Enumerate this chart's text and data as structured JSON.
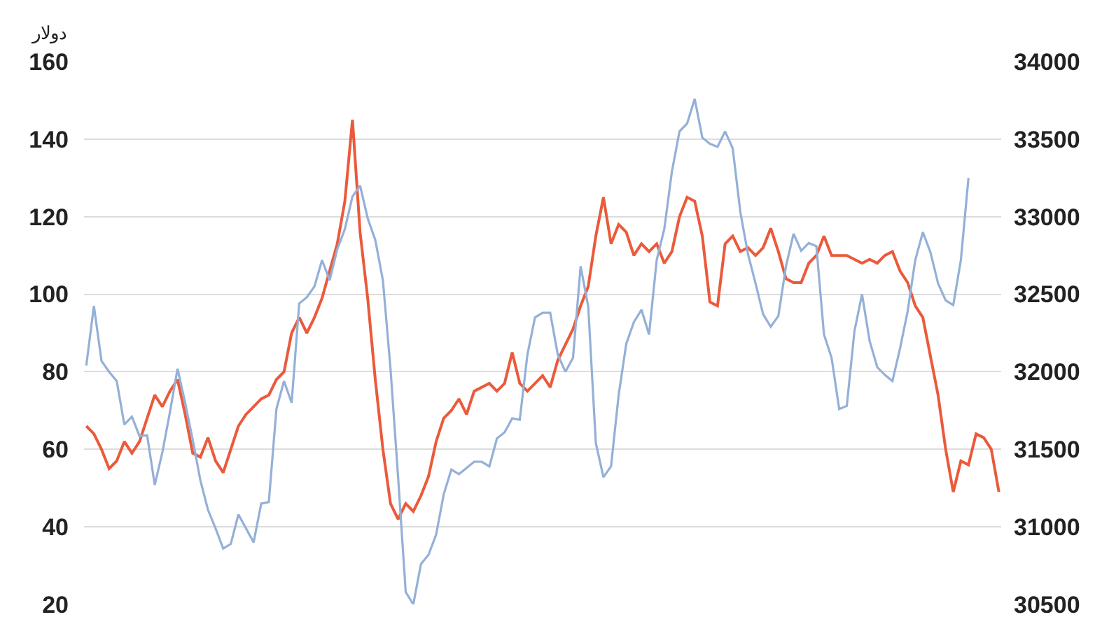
{
  "chart_data": {
    "type": "line",
    "ylabel": "دولار",
    "categories": [
      null,
      null,
      null,
      null,
      null,
      null,
      null,
      null,
      null,
      null,
      null,
      null,
      null,
      null,
      null,
      null,
      null,
      null,
      null,
      null,
      null,
      null,
      null,
      null,
      null,
      null,
      null,
      null,
      null,
      null,
      null,
      null,
      null,
      null,
      null,
      null,
      null,
      null,
      null,
      null,
      null,
      null,
      null,
      null,
      null,
      null,
      null,
      null,
      null,
      null,
      null,
      null,
      null,
      null,
      null,
      null,
      null,
      null,
      null,
      null,
      null,
      null,
      null,
      null,
      null,
      null,
      null,
      null,
      null,
      null,
      null,
      null,
      null,
      null,
      null,
      null,
      null,
      null,
      null,
      null,
      null,
      null,
      null,
      null,
      null,
      null,
      null,
      null,
      null,
      null,
      null,
      null,
      null,
      null,
      null,
      null,
      null,
      null,
      null,
      null,
      null,
      null,
      null,
      null,
      null,
      null,
      null,
      null,
      null,
      null,
      null,
      null,
      null,
      null,
      null,
      null,
      null,
      null,
      null,
      null,
      null
    ],
    "series": [
      {
        "color": "#ea5a3b",
        "values": [
          66,
          64,
          60,
          55,
          57,
          62,
          59,
          62,
          68,
          74,
          71,
          75,
          78,
          69,
          59,
          58,
          63,
          57,
          54,
          60,
          66,
          69,
          71,
          73,
          74,
          78,
          80,
          90,
          94,
          90,
          94,
          99,
          106,
          113,
          124,
          145,
          116,
          99,
          78,
          60,
          46,
          42,
          46,
          44,
          48,
          53,
          62,
          68,
          70,
          73,
          69,
          75,
          76,
          77,
          75,
          77,
          85,
          77,
          75,
          77,
          79,
          76,
          83,
          87,
          91,
          97,
          102,
          115,
          125,
          113,
          118,
          116,
          110,
          113,
          111,
          113,
          108,
          111,
          120,
          125,
          124,
          115,
          98,
          97,
          113,
          115,
          111,
          112,
          110,
          112,
          117,
          111,
          104,
          103,
          103,
          108,
          110,
          115,
          110,
          110,
          110,
          109,
          108,
          109,
          108,
          110,
          111,
          106,
          103,
          97,
          94,
          84,
          74,
          60,
          49,
          57,
          56,
          64,
          63,
          60,
          49
        ]
      },
      {
        "color": "#94b0d8",
        "axis": "y2",
        "values": [
          32040,
          32425,
          32070,
          32000,
          31940,
          31660,
          31710,
          31585,
          31590,
          31270,
          31480,
          31740,
          32020,
          31800,
          31560,
          31300,
          31110,
          30990,
          30860,
          30890,
          31080,
          30990,
          30900,
          31150,
          31160,
          31760,
          31940,
          31800,
          32440,
          32480,
          32550,
          32720,
          32590,
          32790,
          32920,
          33130,
          33200,
          32990,
          32850,
          32590,
          32020,
          31320,
          30580,
          30500,
          30760,
          30820,
          30950,
          31210,
          31370,
          31340,
          31380,
          31420,
          31420,
          31390,
          31570,
          31610,
          31700,
          31690,
          32110,
          32350,
          32380,
          32380,
          32110,
          32000,
          32090,
          32680,
          32420,
          31540,
          31320,
          31390,
          31850,
          32180,
          32320,
          32400,
          32240,
          32720,
          32920,
          33290,
          33550,
          33600,
          33760,
          33510,
          33470,
          33450,
          33550,
          33440,
          33030,
          32760,
          32570,
          32370,
          32290,
          32360,
          32680,
          32890,
          32780,
          32830,
          32810,
          32240,
          32090,
          31760,
          31780,
          32260,
          32500,
          32200,
          32030,
          31980,
          31940,
          32150,
          32390,
          32720,
          32900,
          32770,
          32570,
          32460,
          32430,
          32720,
          33250,
          null,
          null,
          null,
          null
        ]
      }
    ],
    "ylim": [
      20,
      160
    ],
    "yticks": [
      20,
      40,
      60,
      80,
      100,
      120,
      140,
      160
    ],
    "y2lim": [
      30500,
      34000
    ],
    "y2ticks": [
      30500,
      31000,
      31500,
      32000,
      32500,
      33000,
      33500,
      34000
    ],
    "grid": "y"
  }
}
